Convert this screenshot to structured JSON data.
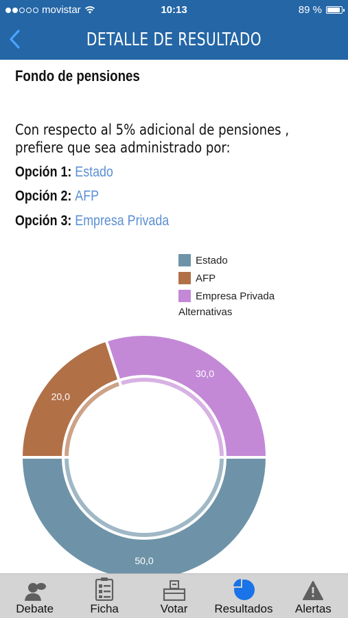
{
  "status_bar": {
    "carrier": "movistar",
    "time": "10:13",
    "battery": "89 %",
    "battery_level": 0.89,
    "signal_bars": 2
  },
  "nav": {
    "title": "DETALLE DE RESULTADO",
    "back_icon": "chevron-left-icon"
  },
  "content": {
    "section_title": "Fondo de pensiones",
    "question": "Con respecto al 5% adicional de pensiones , prefiere que sea administrado por:",
    "options": [
      {
        "label": "Opción 1:",
        "value": "Estado"
      },
      {
        "label": "Opción 2:",
        "value": "AFP"
      },
      {
        "label": "Opción 3:",
        "value": "Empresa Privada"
      }
    ],
    "option_value_color": "#5b8fd4"
  },
  "chart_data": {
    "type": "pie",
    "categories": [
      "Estado",
      "AFP",
      "Empresa Privada"
    ],
    "values": [
      50.0,
      20.0,
      30.0
    ],
    "data_labels": [
      "50,0",
      "20,0",
      "30,0"
    ],
    "colors": [
      "#6e93a8",
      "#b27047",
      "#c389d6"
    ],
    "legend_title": "Alternativas",
    "legend_position": "top-right",
    "donut": true
  },
  "tab_bar": {
    "tabs": [
      {
        "label": "Debate",
        "icon": "person-speech-icon",
        "active": false
      },
      {
        "label": "Ficha",
        "icon": "checklist-icon",
        "active": false
      },
      {
        "label": "Votar",
        "icon": "ballot-box-icon",
        "active": false
      },
      {
        "label": "Resultados",
        "icon": "pie-chart-icon",
        "active": true
      },
      {
        "label": "Alertas",
        "icon": "warning-icon",
        "active": false
      }
    ],
    "active_color": "#1a73e8",
    "inactive_color": "#5f5f5f"
  },
  "colors": {
    "brand": "#2466a6"
  }
}
